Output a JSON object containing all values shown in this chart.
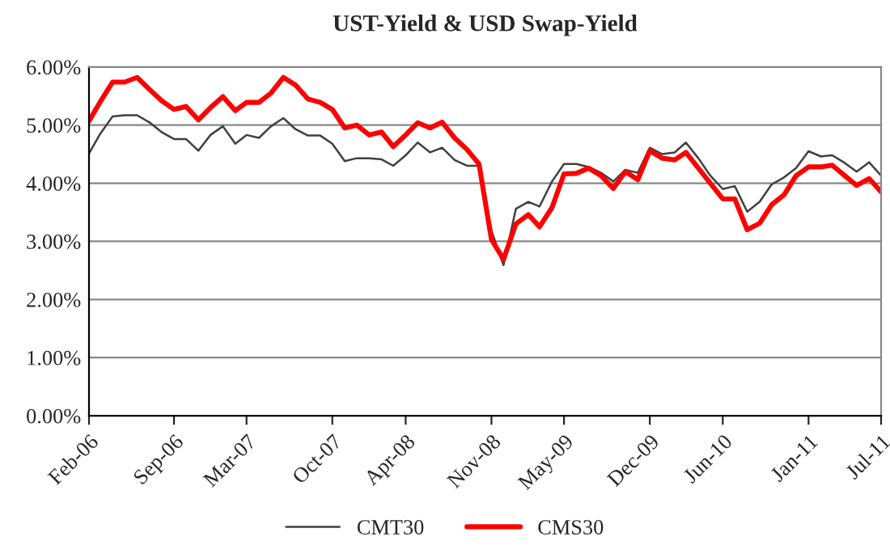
{
  "chart_data": {
    "type": "line",
    "title": "UST-Yield & USD Swap-Yield",
    "x": [
      "2006-02",
      "2006-03",
      "2006-04",
      "2006-05",
      "2006-06",
      "2006-07",
      "2006-08",
      "2006-09",
      "2006-10",
      "2006-11",
      "2006-12",
      "2007-01",
      "2007-02",
      "2007-03",
      "2007-04",
      "2007-05",
      "2007-06",
      "2007-07",
      "2007-08",
      "2007-09",
      "2007-10",
      "2007-11",
      "2007-12",
      "2008-01",
      "2008-02",
      "2008-03",
      "2008-04",
      "2008-05",
      "2008-06",
      "2008-07",
      "2008-08",
      "2008-09",
      "2008-10",
      "2008-11",
      "2008-12",
      "2009-01",
      "2009-02",
      "2009-03",
      "2009-04",
      "2009-05",
      "2009-06",
      "2009-07",
      "2009-08",
      "2009-09",
      "2009-10",
      "2009-11",
      "2009-12",
      "2010-01",
      "2010-02",
      "2010-03",
      "2010-04",
      "2010-05",
      "2010-06",
      "2010-07",
      "2010-08",
      "2010-09",
      "2010-10",
      "2010-11",
      "2010-12",
      "2011-01",
      "2011-02",
      "2011-03",
      "2011-04",
      "2011-05",
      "2011-06",
      "2011-07"
    ],
    "series": [
      {
        "name": "CMT30",
        "color": "#404040",
        "values": [
          4.51,
          4.85,
          5.15,
          5.17,
          5.17,
          5.05,
          4.88,
          4.76,
          4.76,
          4.56,
          4.83,
          4.98,
          4.68,
          4.83,
          4.78,
          4.98,
          5.12,
          4.93,
          4.82,
          4.82,
          4.68,
          4.38,
          4.43,
          4.43,
          4.41,
          4.3,
          4.48,
          4.7,
          4.53,
          4.61,
          4.4,
          4.3,
          4.3,
          3.18,
          2.59,
          3.56,
          3.68,
          3.6,
          4.03,
          4.33,
          4.33,
          4.28,
          4.18,
          4.03,
          4.23,
          4.18,
          4.61,
          4.5,
          4.53,
          4.7,
          4.43,
          4.13,
          3.9,
          3.95,
          3.51,
          3.68,
          3.98,
          4.1,
          4.26,
          4.55,
          4.46,
          4.48,
          4.35,
          4.2,
          4.36,
          4.13
        ]
      },
      {
        "name": "CMS30",
        "color": "#ff0000",
        "values": [
          5.07,
          5.4,
          5.74,
          5.74,
          5.82,
          5.62,
          5.42,
          5.27,
          5.32,
          5.09,
          5.3,
          5.49,
          5.25,
          5.39,
          5.39,
          5.55,
          5.82,
          5.69,
          5.45,
          5.39,
          5.27,
          4.95,
          5.0,
          4.83,
          4.88,
          4.63,
          4.83,
          5.04,
          4.95,
          5.05,
          4.78,
          4.58,
          4.33,
          3.03,
          2.69,
          3.3,
          3.46,
          3.25,
          3.58,
          4.16,
          4.17,
          4.26,
          4.13,
          3.91,
          4.2,
          4.06,
          4.56,
          4.43,
          4.4,
          4.53,
          4.26,
          4.0,
          3.73,
          3.73,
          3.2,
          3.31,
          3.63,
          3.8,
          4.13,
          4.28,
          4.28,
          4.31,
          4.13,
          3.96,
          4.08,
          3.85
        ]
      }
    ],
    "xlim": [
      "2006-02",
      "2011-07"
    ],
    "xticks": [
      {
        "value": "2006-02",
        "label": "Feb-06"
      },
      {
        "value": "2006-09",
        "label": "Sep-06"
      },
      {
        "value": "2007-03",
        "label": "Mar-07"
      },
      {
        "value": "2007-10",
        "label": "Oct-07"
      },
      {
        "value": "2008-04",
        "label": "Apr-08"
      },
      {
        "value": "2008-11",
        "label": "Nov-08"
      },
      {
        "value": "2009-05",
        "label": "May-09"
      },
      {
        "value": "2009-12",
        "label": "Dec-09"
      },
      {
        "value": "2010-06",
        "label": "Jun-10"
      },
      {
        "value": "2011-01",
        "label": "Jan-11"
      },
      {
        "value": "2011-07",
        "label": "Jul-11"
      }
    ],
    "ylim": [
      0,
      6
    ],
    "yticks": [
      {
        "value": 0,
        "label": "0.00%"
      },
      {
        "value": 1,
        "label": "1.00%"
      },
      {
        "value": 2,
        "label": "2.00%"
      },
      {
        "value": 3,
        "label": "3.00%"
      },
      {
        "value": 4,
        "label": "4.00%"
      },
      {
        "value": 5,
        "label": "5.00%"
      },
      {
        "value": 6,
        "label": "6.00%"
      }
    ],
    "grid": "y",
    "legend": "bottom",
    "marker": "none",
    "line_style": "solid"
  }
}
